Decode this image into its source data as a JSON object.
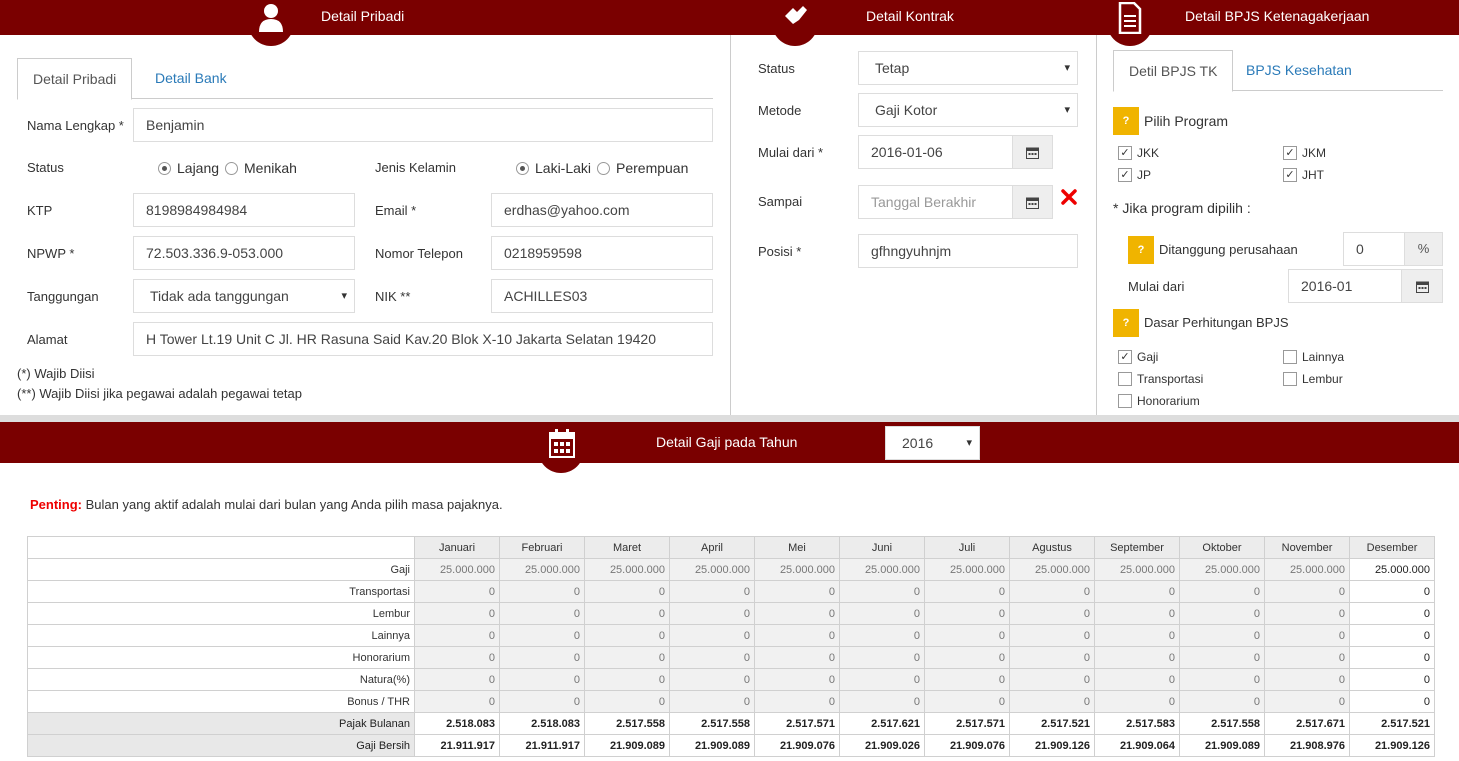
{
  "headers": {
    "pribadi": "Detail Pribadi",
    "kontrak": "Detail Kontrak",
    "bpjs": "Detail BPJS Ketenagakerjaan",
    "gaji": "Detail Gaji pada Tahun"
  },
  "pribadi": {
    "tabs": [
      "Detail Pribadi",
      "Detail Bank"
    ],
    "nama_label": "Nama Lengkap *",
    "nama_value": "Benjamin",
    "status_label": "Status",
    "status_opts": [
      "Lajang",
      "Menikah"
    ],
    "jk_label": "Jenis Kelamin",
    "jk_opts": [
      "Laki-Laki",
      "Perempuan"
    ],
    "ktp_label": "KTP",
    "ktp_value": "8198984984984",
    "email_label": "Email *",
    "email_value": "erdhas@yahoo.com",
    "npwp_label": "NPWP *",
    "npwp_value": "72.503.336.9-053.000",
    "telp_label": "Nomor Telepon",
    "telp_value": "0218959598",
    "tanggungan_label": "Tanggungan",
    "tanggungan_value": "Tidak ada tanggungan",
    "nik_label": "NIK **",
    "nik_value": "ACHILLES03",
    "alamat_label": "Alamat",
    "alamat_value": "H Tower Lt.19 Unit C Jl. HR Rasuna Said Kav.20 Blok X-10 Jakarta Selatan 19420",
    "note1": "(*) Wajib Diisi",
    "note2": "(**) Wajib Diisi jika pegawai adalah pegawai tetap"
  },
  "kontrak": {
    "status_label": "Status",
    "status_value": "Tetap",
    "metode_label": "Metode",
    "metode_value": "Gaji Kotor",
    "mulai_label": "Mulai dari *",
    "mulai_value": "2016-01-06",
    "sampai_label": "Sampai",
    "sampai_placeholder": "Tanggal Berakhir",
    "posisi_label": "Posisi *",
    "posisi_value": "gfhngyuhnjm"
  },
  "bpjs": {
    "tabs": [
      "Detil BPJS TK",
      "BPJS Kesehatan"
    ],
    "pilih_program": "Pilih Program",
    "programs": [
      "JKK",
      "JKM",
      "JP",
      "JHT"
    ],
    "jika_dipilih": "* Jika program dipilih :",
    "ditanggung_label": "Ditanggung perusahaan",
    "ditanggung_value": "0",
    "percent": "%",
    "mulai_label": "Mulai dari",
    "mulai_value": "2016-01",
    "dasar_label": "Dasar Perhitungan BPJS",
    "dasar_opts": [
      "Gaji",
      "Lainnya",
      "Transportasi",
      "Lembur",
      "Honorarium"
    ]
  },
  "gaji": {
    "year": "2016",
    "penting_label": "Penting:",
    "penting_text": " Bulan yang aktif adalah mulai dari bulan yang Anda pilih masa pajaknya.",
    "months": [
      "Januari",
      "Februari",
      "Maret",
      "April",
      "Mei",
      "Juni",
      "Juli",
      "Agustus",
      "September",
      "Oktober",
      "November",
      "Desember"
    ],
    "rows": [
      {
        "label": "Gaji",
        "values": [
          "25.000.000",
          "25.000.000",
          "25.000.000",
          "25.000.000",
          "25.000.000",
          "25.000.000",
          "25.000.000",
          "25.000.000",
          "25.000.000",
          "25.000.000",
          "25.000.000",
          "25.000.000"
        ]
      },
      {
        "label": "Transportasi",
        "values": [
          "0",
          "0",
          "0",
          "0",
          "0",
          "0",
          "0",
          "0",
          "0",
          "0",
          "0",
          "0"
        ]
      },
      {
        "label": "Lembur",
        "values": [
          "0",
          "0",
          "0",
          "0",
          "0",
          "0",
          "0",
          "0",
          "0",
          "0",
          "0",
          "0"
        ]
      },
      {
        "label": "Lainnya",
        "values": [
          "0",
          "0",
          "0",
          "0",
          "0",
          "0",
          "0",
          "0",
          "0",
          "0",
          "0",
          "0"
        ]
      },
      {
        "label": "Honorarium",
        "values": [
          "0",
          "0",
          "0",
          "0",
          "0",
          "0",
          "0",
          "0",
          "0",
          "0",
          "0",
          "0"
        ]
      },
      {
        "label": "Natura(%)",
        "values": [
          "0",
          "0",
          "0",
          "0",
          "0",
          "0",
          "0",
          "0",
          "0",
          "0",
          "0",
          "0"
        ]
      },
      {
        "label": "Bonus / THR",
        "values": [
          "0",
          "0",
          "0",
          "0",
          "0",
          "0",
          "0",
          "0",
          "0",
          "0",
          "0",
          "0"
        ]
      },
      {
        "label": "Pajak Bulanan",
        "values": [
          "2.518.083",
          "2.518.083",
          "2.517.558",
          "2.517.558",
          "2.517.571",
          "2.517.621",
          "2.517.571",
          "2.517.521",
          "2.517.583",
          "2.517.558",
          "2.517.671",
          "2.517.521"
        ]
      },
      {
        "label": "Gaji Bersih",
        "values": [
          "21.911.917",
          "21.911.917",
          "21.909.089",
          "21.909.089",
          "21.909.076",
          "21.909.026",
          "21.909.076",
          "21.909.126",
          "21.909.064",
          "21.909.089",
          "21.908.976",
          "21.909.126"
        ]
      }
    ]
  }
}
